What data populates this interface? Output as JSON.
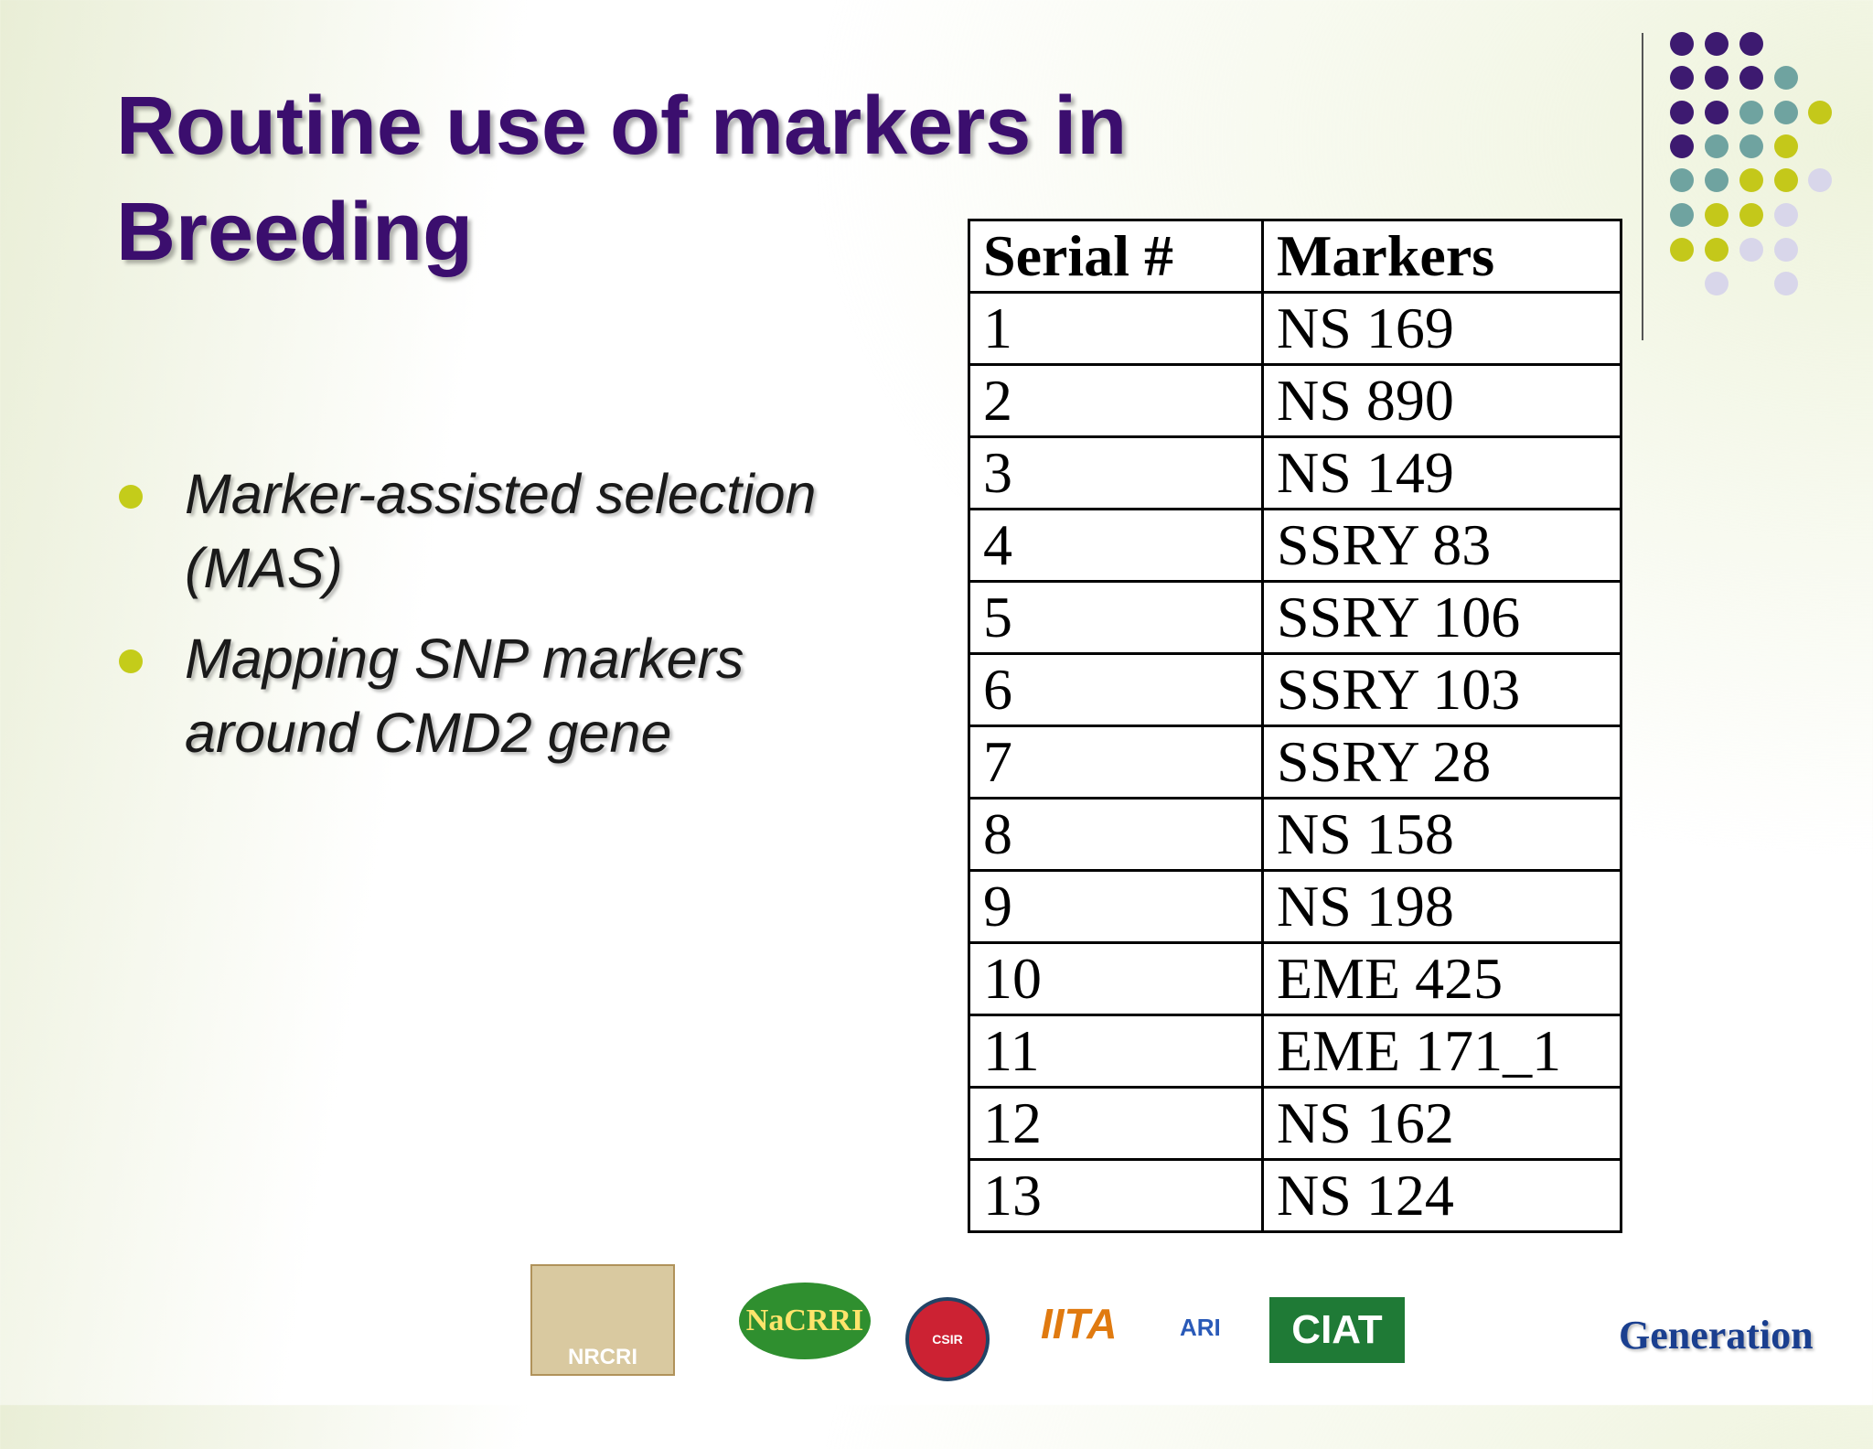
{
  "title": "Routine use of markers in Breeding",
  "bullets": [
    "Marker-assisted selection (MAS)",
    "Mapping SNP markers around CMD2 gene"
  ],
  "table": {
    "header": [
      "Serial #",
      "Markers"
    ],
    "rows": [
      [
        "1",
        "NS 169"
      ],
      [
        "2",
        "NS 890"
      ],
      [
        "3",
        "NS 149"
      ],
      [
        "4",
        "SSRY 83"
      ],
      [
        "5",
        "SSRY 106"
      ],
      [
        "6",
        "SSRY 103"
      ],
      [
        "7",
        "SSRY 28"
      ],
      [
        "8",
        "NS 158"
      ],
      [
        "9",
        "NS 198"
      ],
      [
        "10",
        "EME 425"
      ],
      [
        "11",
        "EME 171_1"
      ],
      [
        "12",
        "NS 162"
      ],
      [
        "13",
        "NS 124"
      ]
    ]
  },
  "logos": [
    "NRCRI",
    "NaCRRI",
    "CSIR",
    "IITA",
    "ARI",
    "CIAT",
    "Generation"
  ]
}
